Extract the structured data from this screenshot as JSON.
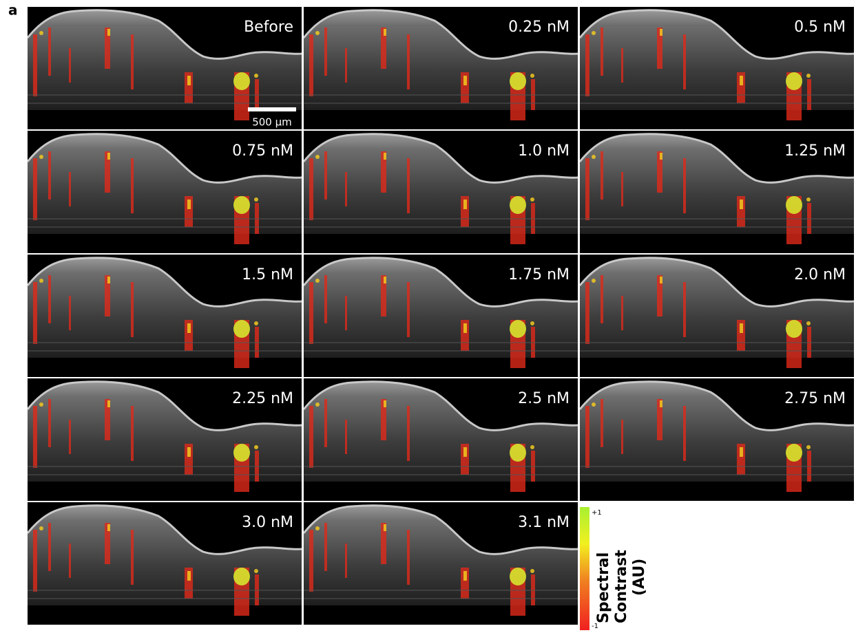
{
  "figure_label": "a",
  "panels": [
    "Before",
    "0.25 nM",
    "0.5 nM",
    "0.75 nM",
    "1.0 nM",
    "1.25 nM",
    "1.5 nM",
    "1.75 nM",
    "2.0 nM",
    "2.25 nM",
    "2.5 nM",
    "2.75 nM",
    "3.0 nM",
    "3.1 nM"
  ],
  "scale_bar": "500 µm",
  "colorbar": {
    "top_label": "+1",
    "bottom_label": "-1",
    "title_line1": "Spectral",
    "title_line2": "Contrast",
    "title_line3": "(AU)"
  }
}
